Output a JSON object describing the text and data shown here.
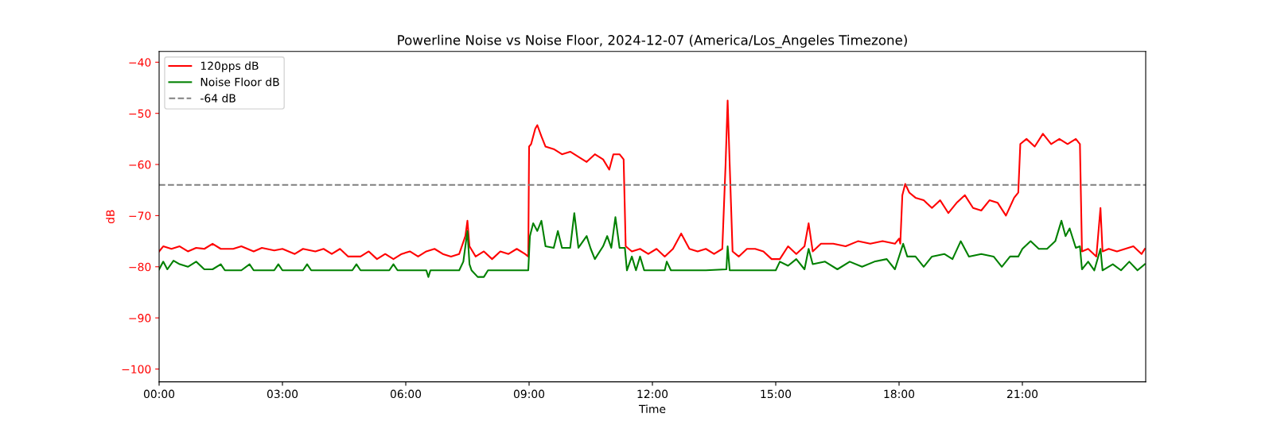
{
  "chart_data": {
    "type": "line",
    "title": "Powerline Noise vs Noise Floor, 2024-12-07 (America/Los_Angeles Timezone)",
    "xlabel": "Time",
    "ylabel": "dB",
    "xlim": [
      0,
      24
    ],
    "ylim": [
      -102.5,
      -37.9
    ],
    "xticks": [
      {
        "value": 0,
        "label": "00:00"
      },
      {
        "value": 3,
        "label": "03:00"
      },
      {
        "value": 6,
        "label": "06:00"
      },
      {
        "value": 9,
        "label": "09:00"
      },
      {
        "value": 12,
        "label": "12:00"
      },
      {
        "value": 15,
        "label": "15:00"
      },
      {
        "value": 18,
        "label": "18:00"
      },
      {
        "value": 21,
        "label": "21:00"
      }
    ],
    "yticks": [
      -100,
      -90,
      -80,
      -70,
      -60,
      -50,
      -40
    ],
    "legend": "top left",
    "grid": false,
    "marker": "none",
    "line_style": "solid",
    "series": [
      {
        "name": "120pps dB",
        "color": "#ff0000",
        "x": [
          0,
          0.1,
          0.3,
          0.5,
          0.7,
          0.9,
          1.1,
          1.3,
          1.5,
          1.8,
          2.0,
          2.3,
          2.5,
          2.8,
          3.0,
          3.3,
          3.5,
          3.8,
          4.0,
          4.2,
          4.4,
          4.6,
          4.9,
          5.1,
          5.3,
          5.5,
          5.7,
          5.9,
          6.1,
          6.3,
          6.5,
          6.7,
          6.9,
          7.1,
          7.3,
          7.45,
          7.5,
          7.55,
          7.7,
          7.9,
          8.1,
          8.3,
          8.5,
          8.7,
          8.9,
          8.98,
          9.0,
          9.05,
          9.15,
          9.2,
          9.3,
          9.4,
          9.6,
          9.8,
          10.0,
          10.2,
          10.4,
          10.6,
          10.8,
          10.95,
          11.05,
          11.2,
          11.3,
          11.35,
          11.5,
          11.7,
          11.9,
          12.1,
          12.3,
          12.5,
          12.7,
          12.9,
          13.1,
          13.3,
          13.5,
          13.7,
          13.78,
          13.83,
          13.88,
          13.95,
          14.1,
          14.3,
          14.5,
          14.7,
          14.9,
          15.1,
          15.3,
          15.5,
          15.7,
          15.8,
          15.9,
          16.1,
          16.4,
          16.7,
          17.0,
          17.3,
          17.6,
          17.9,
          18.0,
          18.03,
          18.08,
          18.15,
          18.25,
          18.4,
          18.6,
          18.8,
          19.0,
          19.2,
          19.4,
          19.6,
          19.8,
          20.0,
          20.2,
          20.4,
          20.6,
          20.8,
          20.9,
          20.95,
          21.1,
          21.3,
          21.5,
          21.7,
          21.9,
          22.1,
          22.3,
          22.4,
          22.45,
          22.6,
          22.8,
          22.9,
          22.95,
          23.1,
          23.3,
          23.5,
          23.7,
          23.9,
          23.98
        ],
        "values": [
          -77,
          -76,
          -76.5,
          -76,
          -77,
          -76.3,
          -76.5,
          -75.5,
          -76.5,
          -76.5,
          -76,
          -77,
          -76.3,
          -76.8,
          -76.5,
          -77.5,
          -76.5,
          -77,
          -76.5,
          -77.5,
          -76.5,
          -78,
          -78,
          -77,
          -78.5,
          -77.5,
          -78.5,
          -77.5,
          -77,
          -78,
          -77,
          -76.5,
          -77.5,
          -78,
          -77.5,
          -74,
          -71,
          -76,
          -78,
          -77,
          -78.5,
          -77,
          -77.5,
          -76.5,
          -77.5,
          -78,
          -56.5,
          -56,
          -53,
          -52.3,
          -54.5,
          -56.5,
          -57,
          -58,
          -57.5,
          -58.5,
          -59.5,
          -58,
          -59,
          -61,
          -58,
          -58,
          -59,
          -76,
          -77,
          -76.5,
          -77.5,
          -76.5,
          -78,
          -76.5,
          -73.5,
          -76.5,
          -77,
          -76.5,
          -77.5,
          -76.5,
          -60,
          -47.5,
          -60,
          -77,
          -78,
          -76.5,
          -76.5,
          -77,
          -78.5,
          -78.5,
          -76,
          -77.5,
          -76,
          -71.5,
          -77,
          -75.5,
          -75.5,
          -76,
          -75,
          -75.5,
          -75,
          -75.5,
          -74.5,
          -75.5,
          -66,
          -63.8,
          -65.5,
          -66.5,
          -67,
          -68.5,
          -67,
          -69.5,
          -67.5,
          -66,
          -68.5,
          -69,
          -67,
          -67.5,
          -70,
          -66.5,
          -65.5,
          -56,
          -55,
          -56.5,
          -54,
          -56,
          -55,
          -56,
          -55,
          -56,
          -77,
          -76.5,
          -78,
          -68.5,
          -77,
          -76.5,
          -77,
          -76.5,
          -76,
          -77.5,
          -76.5
        ]
      },
      {
        "name": "Noise Floor dB",
        "color": "#008000",
        "x": [
          0,
          0.1,
          0.2,
          0.35,
          0.5,
          0.7,
          0.9,
          1.1,
          1.3,
          1.5,
          1.6,
          2.0,
          2.2,
          2.3,
          2.8,
          2.9,
          3.0,
          3.5,
          3.6,
          3.7,
          4.7,
          4.8,
          4.9,
          5.6,
          5.7,
          5.8,
          6.5,
          6.55,
          6.6,
          7.3,
          7.4,
          7.5,
          7.55,
          7.6,
          7.75,
          7.9,
          8.0,
          8.98,
          9.02,
          9.1,
          9.2,
          9.3,
          9.4,
          9.6,
          9.7,
          9.8,
          10.0,
          10.1,
          10.2,
          10.4,
          10.5,
          10.6,
          10.8,
          10.9,
          11.0,
          11.1,
          11.2,
          11.33,
          11.38,
          11.5,
          11.6,
          11.7,
          11.8,
          12.3,
          12.35,
          12.45,
          13.3,
          13.8,
          13.83,
          13.88,
          15.0,
          15.1,
          15.3,
          15.5,
          15.7,
          15.8,
          15.9,
          16.2,
          16.5,
          16.8,
          17.1,
          17.4,
          17.7,
          17.9,
          18.1,
          18.2,
          18.4,
          18.6,
          18.8,
          19.1,
          19.3,
          19.5,
          19.7,
          20.0,
          20.3,
          20.5,
          20.7,
          20.9,
          21.0,
          21.2,
          21.4,
          21.6,
          21.8,
          21.95,
          22.05,
          22.15,
          22.3,
          22.4,
          22.45,
          22.6,
          22.75,
          22.9,
          22.95,
          23.2,
          23.4,
          23.6,
          23.8,
          23.98
        ],
        "values": [
          -80.5,
          -79,
          -80.5,
          -78.8,
          -79.5,
          -80,
          -79,
          -80.5,
          -80.5,
          -79.5,
          -80.7,
          -80.7,
          -79.5,
          -80.7,
          -80.7,
          -79.5,
          -80.7,
          -80.7,
          -79.5,
          -80.7,
          -80.7,
          -79.5,
          -80.7,
          -80.7,
          -79.5,
          -80.7,
          -80.7,
          -82,
          -80.7,
          -80.7,
          -79,
          -73,
          -79.5,
          -80.7,
          -82,
          -82,
          -80.7,
          -80.7,
          -74,
          -71.5,
          -73,
          -71,
          -76,
          -76.3,
          -73,
          -76.3,
          -76.3,
          -69.5,
          -76.3,
          -74,
          -76.5,
          -78.5,
          -76,
          -74,
          -76.3,
          -70.3,
          -76.3,
          -76.3,
          -80.7,
          -78,
          -80.7,
          -78,
          -80.7,
          -80.7,
          -79,
          -80.7,
          -80.7,
          -80.5,
          -76,
          -80.7,
          -80.7,
          -79,
          -79.8,
          -78.5,
          -80.5,
          -76.5,
          -79.5,
          -79,
          -80.5,
          -79,
          -80,
          -79,
          -78.5,
          -80.5,
          -75.5,
          -78,
          -78,
          -80,
          -78,
          -77.5,
          -78.5,
          -75,
          -78,
          -77.5,
          -78,
          -80,
          -78,
          -78,
          -76.5,
          -75,
          -76.5,
          -76.5,
          -75,
          -71,
          -74,
          -72.5,
          -76.3,
          -76,
          -80.5,
          -79,
          -80.7,
          -76.5,
          -80.7,
          -79.5,
          -80.7,
          -79,
          -80.7,
          -79.5
        ]
      }
    ],
    "ref_lines": [
      {
        "axis": "y",
        "value": -64,
        "label": "-64 dB",
        "color": "#808080",
        "line_style": "dashed"
      }
    ]
  }
}
